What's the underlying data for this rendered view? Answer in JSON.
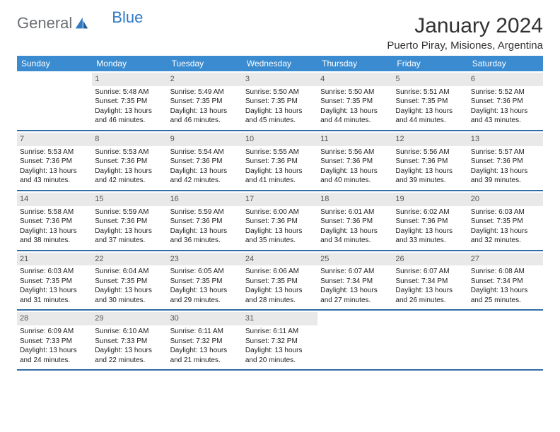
{
  "logo": {
    "part1": "General",
    "part2": "Blue"
  },
  "title": "January 2024",
  "location": "Puerto Piray, Misiones, Argentina",
  "colors": {
    "header_bg": "#3a8bd0",
    "header_text": "#ffffff",
    "daynum_bg": "#e9e9e9",
    "week_divider": "#2f6da6",
    "logo_gray": "#6c6f73",
    "logo_blue": "#2f7bc4"
  },
  "day_names": [
    "Sunday",
    "Monday",
    "Tuesday",
    "Wednesday",
    "Thursday",
    "Friday",
    "Saturday"
  ],
  "weeks": [
    [
      {
        "n": "",
        "l1": "",
        "l2": "",
        "l3": "",
        "l4": ""
      },
      {
        "n": "1",
        "l1": "Sunrise: 5:48 AM",
        "l2": "Sunset: 7:35 PM",
        "l3": "Daylight: 13 hours",
        "l4": "and 46 minutes."
      },
      {
        "n": "2",
        "l1": "Sunrise: 5:49 AM",
        "l2": "Sunset: 7:35 PM",
        "l3": "Daylight: 13 hours",
        "l4": "and 46 minutes."
      },
      {
        "n": "3",
        "l1": "Sunrise: 5:50 AM",
        "l2": "Sunset: 7:35 PM",
        "l3": "Daylight: 13 hours",
        "l4": "and 45 minutes."
      },
      {
        "n": "4",
        "l1": "Sunrise: 5:50 AM",
        "l2": "Sunset: 7:35 PM",
        "l3": "Daylight: 13 hours",
        "l4": "and 44 minutes."
      },
      {
        "n": "5",
        "l1": "Sunrise: 5:51 AM",
        "l2": "Sunset: 7:35 PM",
        "l3": "Daylight: 13 hours",
        "l4": "and 44 minutes."
      },
      {
        "n": "6",
        "l1": "Sunrise: 5:52 AM",
        "l2": "Sunset: 7:36 PM",
        "l3": "Daylight: 13 hours",
        "l4": "and 43 minutes."
      }
    ],
    [
      {
        "n": "7",
        "l1": "Sunrise: 5:53 AM",
        "l2": "Sunset: 7:36 PM",
        "l3": "Daylight: 13 hours",
        "l4": "and 43 minutes."
      },
      {
        "n": "8",
        "l1": "Sunrise: 5:53 AM",
        "l2": "Sunset: 7:36 PM",
        "l3": "Daylight: 13 hours",
        "l4": "and 42 minutes."
      },
      {
        "n": "9",
        "l1": "Sunrise: 5:54 AM",
        "l2": "Sunset: 7:36 PM",
        "l3": "Daylight: 13 hours",
        "l4": "and 42 minutes."
      },
      {
        "n": "10",
        "l1": "Sunrise: 5:55 AM",
        "l2": "Sunset: 7:36 PM",
        "l3": "Daylight: 13 hours",
        "l4": "and 41 minutes."
      },
      {
        "n": "11",
        "l1": "Sunrise: 5:56 AM",
        "l2": "Sunset: 7:36 PM",
        "l3": "Daylight: 13 hours",
        "l4": "and 40 minutes."
      },
      {
        "n": "12",
        "l1": "Sunrise: 5:56 AM",
        "l2": "Sunset: 7:36 PM",
        "l3": "Daylight: 13 hours",
        "l4": "and 39 minutes."
      },
      {
        "n": "13",
        "l1": "Sunrise: 5:57 AM",
        "l2": "Sunset: 7:36 PM",
        "l3": "Daylight: 13 hours",
        "l4": "and 39 minutes."
      }
    ],
    [
      {
        "n": "14",
        "l1": "Sunrise: 5:58 AM",
        "l2": "Sunset: 7:36 PM",
        "l3": "Daylight: 13 hours",
        "l4": "and 38 minutes."
      },
      {
        "n": "15",
        "l1": "Sunrise: 5:59 AM",
        "l2": "Sunset: 7:36 PM",
        "l3": "Daylight: 13 hours",
        "l4": "and 37 minutes."
      },
      {
        "n": "16",
        "l1": "Sunrise: 5:59 AM",
        "l2": "Sunset: 7:36 PM",
        "l3": "Daylight: 13 hours",
        "l4": "and 36 minutes."
      },
      {
        "n": "17",
        "l1": "Sunrise: 6:00 AM",
        "l2": "Sunset: 7:36 PM",
        "l3": "Daylight: 13 hours",
        "l4": "and 35 minutes."
      },
      {
        "n": "18",
        "l1": "Sunrise: 6:01 AM",
        "l2": "Sunset: 7:36 PM",
        "l3": "Daylight: 13 hours",
        "l4": "and 34 minutes."
      },
      {
        "n": "19",
        "l1": "Sunrise: 6:02 AM",
        "l2": "Sunset: 7:36 PM",
        "l3": "Daylight: 13 hours",
        "l4": "and 33 minutes."
      },
      {
        "n": "20",
        "l1": "Sunrise: 6:03 AM",
        "l2": "Sunset: 7:35 PM",
        "l3": "Daylight: 13 hours",
        "l4": "and 32 minutes."
      }
    ],
    [
      {
        "n": "21",
        "l1": "Sunrise: 6:03 AM",
        "l2": "Sunset: 7:35 PM",
        "l3": "Daylight: 13 hours",
        "l4": "and 31 minutes."
      },
      {
        "n": "22",
        "l1": "Sunrise: 6:04 AM",
        "l2": "Sunset: 7:35 PM",
        "l3": "Daylight: 13 hours",
        "l4": "and 30 minutes."
      },
      {
        "n": "23",
        "l1": "Sunrise: 6:05 AM",
        "l2": "Sunset: 7:35 PM",
        "l3": "Daylight: 13 hours",
        "l4": "and 29 minutes."
      },
      {
        "n": "24",
        "l1": "Sunrise: 6:06 AM",
        "l2": "Sunset: 7:35 PM",
        "l3": "Daylight: 13 hours",
        "l4": "and 28 minutes."
      },
      {
        "n": "25",
        "l1": "Sunrise: 6:07 AM",
        "l2": "Sunset: 7:34 PM",
        "l3": "Daylight: 13 hours",
        "l4": "and 27 minutes."
      },
      {
        "n": "26",
        "l1": "Sunrise: 6:07 AM",
        "l2": "Sunset: 7:34 PM",
        "l3": "Daylight: 13 hours",
        "l4": "and 26 minutes."
      },
      {
        "n": "27",
        "l1": "Sunrise: 6:08 AM",
        "l2": "Sunset: 7:34 PM",
        "l3": "Daylight: 13 hours",
        "l4": "and 25 minutes."
      }
    ],
    [
      {
        "n": "28",
        "l1": "Sunrise: 6:09 AM",
        "l2": "Sunset: 7:33 PM",
        "l3": "Daylight: 13 hours",
        "l4": "and 24 minutes."
      },
      {
        "n": "29",
        "l1": "Sunrise: 6:10 AM",
        "l2": "Sunset: 7:33 PM",
        "l3": "Daylight: 13 hours",
        "l4": "and 22 minutes."
      },
      {
        "n": "30",
        "l1": "Sunrise: 6:11 AM",
        "l2": "Sunset: 7:32 PM",
        "l3": "Daylight: 13 hours",
        "l4": "and 21 minutes."
      },
      {
        "n": "31",
        "l1": "Sunrise: 6:11 AM",
        "l2": "Sunset: 7:32 PM",
        "l3": "Daylight: 13 hours",
        "l4": "and 20 minutes."
      },
      {
        "n": "",
        "l1": "",
        "l2": "",
        "l3": "",
        "l4": ""
      },
      {
        "n": "",
        "l1": "",
        "l2": "",
        "l3": "",
        "l4": ""
      },
      {
        "n": "",
        "l1": "",
        "l2": "",
        "l3": "",
        "l4": ""
      }
    ]
  ]
}
